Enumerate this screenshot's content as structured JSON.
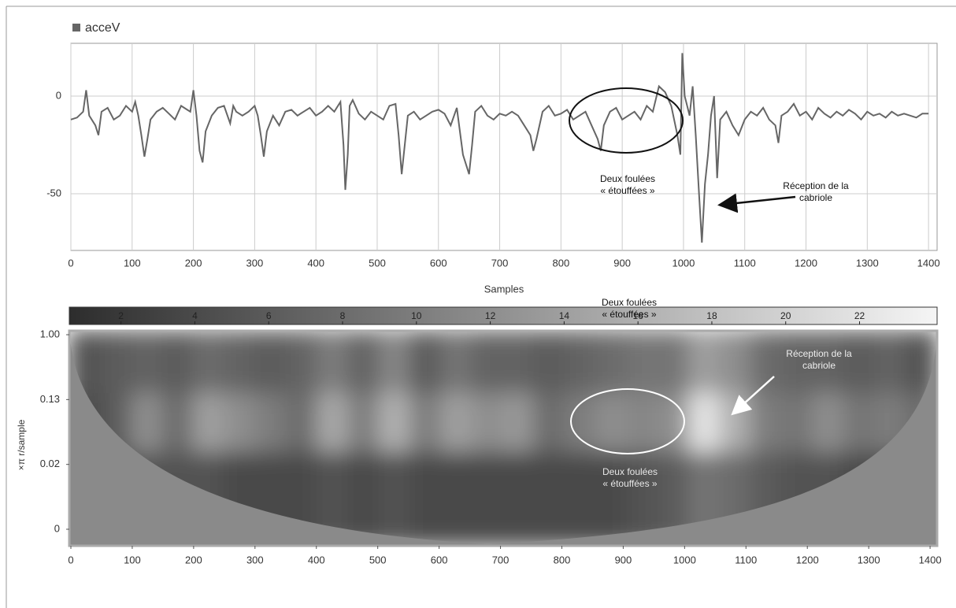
{
  "chart_data": [
    {
      "type": "line",
      "xlabel": "Samples",
      "x": [
        0,
        10,
        20,
        25,
        30,
        40,
        45,
        50,
        60,
        70,
        80,
        90,
        100,
        105,
        110,
        115,
        120,
        125,
        130,
        140,
        150,
        160,
        170,
        180,
        190,
        195,
        200,
        205,
        210,
        215,
        220,
        230,
        240,
        250,
        260,
        265,
        270,
        280,
        290,
        300,
        305,
        310,
        315,
        320,
        330,
        340,
        350,
        360,
        370,
        380,
        390,
        400,
        410,
        420,
        430,
        440,
        445,
        448,
        452,
        455,
        460,
        470,
        480,
        490,
        500,
        510,
        520,
        530,
        535,
        540,
        545,
        550,
        560,
        570,
        580,
        590,
        600,
        610,
        620,
        630,
        640,
        650,
        655,
        660,
        670,
        680,
        690,
        700,
        710,
        720,
        730,
        740,
        750,
        755,
        760,
        770,
        780,
        790,
        800,
        810,
        820,
        830,
        840,
        850,
        860,
        865,
        870,
        880,
        890,
        900,
        910,
        920,
        930,
        940,
        950,
        960,
        970,
        980,
        990,
        995,
        998,
        1002,
        1010,
        1015,
        1020,
        1025,
        1030,
        1035,
        1040,
        1045,
        1050,
        1055,
        1060,
        1070,
        1080,
        1090,
        1100,
        1110,
        1120,
        1130,
        1140,
        1150,
        1155,
        1160,
        1170,
        1180,
        1190,
        1200,
        1210,
        1220,
        1230,
        1240,
        1250,
        1260,
        1270,
        1280,
        1290,
        1300,
        1310,
        1320,
        1330,
        1340,
        1350,
        1360,
        1370,
        1380,
        1390,
        1400
      ],
      "series": [
        {
          "name": "acceV",
          "color": "#666666",
          "values": [
            -12,
            -11,
            -8,
            3,
            -10,
            -15,
            -20,
            -8,
            -6,
            -12,
            -10,
            -5,
            -8,
            -3,
            -10,
            -20,
            -31,
            -22,
            -12,
            -8,
            -6,
            -9,
            -12,
            -5,
            -7,
            -8,
            3,
            -10,
            -28,
            -34,
            -18,
            -10,
            -6,
            -5,
            -14,
            -5,
            -8,
            -10,
            -8,
            -5,
            -10,
            -20,
            -31,
            -18,
            -10,
            -15,
            -8,
            -7,
            -10,
            -8,
            -6,
            -10,
            -8,
            -5,
            -8,
            -3,
            -25,
            -48,
            -30,
            -5,
            -2,
            -9,
            -12,
            -8,
            -10,
            -12,
            -5,
            -4,
            -20,
            -40,
            -25,
            -10,
            -8,
            -12,
            -10,
            -8,
            -7,
            -9,
            -15,
            -6,
            -30,
            -40,
            -25,
            -8,
            -5,
            -10,
            -12,
            -9,
            -10,
            -8,
            -10,
            -15,
            -20,
            -28,
            -22,
            -8,
            -5,
            -10,
            -9,
            -7,
            -12,
            -10,
            -8,
            -15,
            -22,
            -28,
            -15,
            -8,
            -6,
            -12,
            -10,
            -8,
            -12,
            -5,
            -8,
            5,
            2,
            -5,
            -20,
            -30,
            22,
            0,
            -10,
            5,
            -20,
            -48,
            -75,
            -45,
            -30,
            -10,
            0,
            -42,
            -12,
            -8,
            -15,
            -20,
            -12,
            -8,
            -10,
            -6,
            -12,
            -15,
            -24,
            -10,
            -8,
            -4,
            -10,
            -8,
            -12,
            -6,
            -9,
            -11,
            -8,
            -10,
            -7,
            -9,
            -12,
            -8,
            -10,
            -9,
            -11,
            -8,
            -10,
            -9,
            -10,
            -11,
            -9,
            -9
          ]
        }
      ],
      "xlim": [
        0,
        1414
      ],
      "xticks": [
        0,
        100,
        200,
        300,
        400,
        500,
        600,
        700,
        800,
        900,
        1000,
        1100,
        1200,
        1300,
        1400
      ],
      "ylim": [
        -79,
        27
      ],
      "yticks": [
        0,
        -50
      ],
      "grid": true,
      "annotations": [
        [
          "Deux foulées",
          "« étouffées »"
        ],
        [
          "Réception de la",
          "cabriole"
        ]
      ]
    },
    {
      "type": "heatmap",
      "xlabel": "Samples",
      "ylabel": "×π r/sample",
      "xlim": [
        0,
        1414
      ],
      "xticks": [
        0,
        100,
        200,
        300,
        400,
        500,
        600,
        700,
        800,
        900,
        1000,
        1100,
        1200,
        1300,
        1400
      ],
      "yticks": [
        {
          "value": 1,
          "label": "1.00"
        },
        0.13,
        0.02,
        0
      ],
      "clim": [
        0.6,
        24.1
      ],
      "colorbar_ticks": [
        2,
        4,
        6,
        8,
        10,
        12,
        14,
        16,
        18,
        20,
        22
      ],
      "z": [
        [
          5,
          6,
          7,
          6,
          8,
          7,
          6,
          7,
          10,
          7,
          11,
          6,
          9,
          7,
          7,
          6,
          7,
          8,
          9,
          9,
          14,
          12,
          8,
          7,
          7,
          6,
          7,
          5
        ],
        [
          4,
          6,
          12,
          8,
          14,
          12,
          10,
          8,
          15,
          10,
          16,
          10,
          14,
          12,
          13,
          8,
          10,
          12,
          11,
          12,
          22,
          16,
          10,
          9,
          12,
          9,
          10,
          8
        ],
        [
          3,
          4,
          5,
          5,
          5,
          4,
          4,
          4,
          5,
          4,
          5,
          4,
          4,
          4,
          4,
          4,
          4,
          4,
          5,
          6,
          9,
          8,
          6,
          5,
          5,
          4,
          4,
          4
        ]
      ],
      "annotations": [
        [
          "Réception de la",
          "cabriole"
        ],
        [
          "Deux foulées",
          "« étouffées »"
        ],
        [
          "Deux foulées",
          "« étouffées »"
        ]
      ]
    }
  ]
}
